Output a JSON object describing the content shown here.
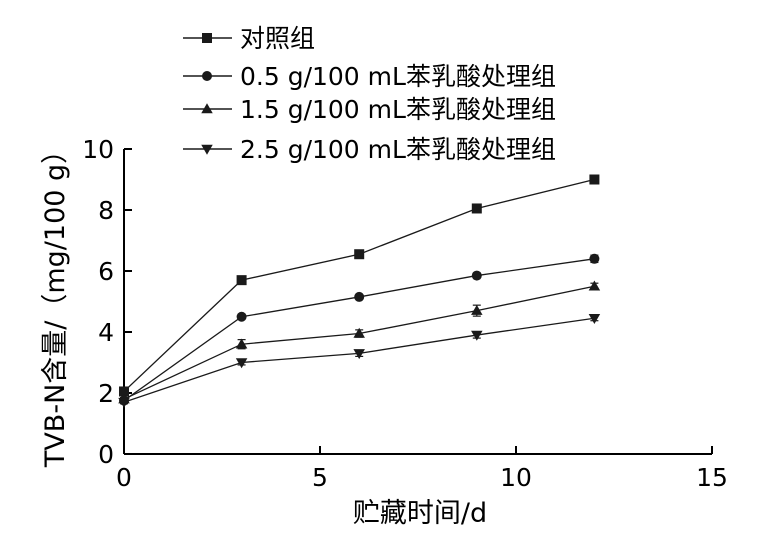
{
  "chart_data": {
    "type": "line",
    "xlabel": "贮藏时间/d",
    "ylabel": "TVB-N含量/（mg/100 g）",
    "xlim": [
      0,
      15
    ],
    "ylim": [
      0,
      10
    ],
    "xticks": [
      0,
      5,
      10,
      15
    ],
    "yticks": [
      0,
      2,
      4,
      6,
      8,
      10
    ],
    "grid": false,
    "legend_position": "top-left",
    "x": [
      0,
      3,
      6,
      9,
      12
    ],
    "series": [
      {
        "name": "对照组",
        "marker": "square",
        "values": [
          2.05,
          5.7,
          6.55,
          8.05,
          9.0
        ],
        "errors": [
          0.05,
          0.1,
          0.08,
          0.08,
          0.1
        ]
      },
      {
        "name": "0.5 g/100 mL苯乳酸处理组",
        "marker": "circle",
        "values": [
          1.75,
          4.5,
          5.15,
          5.85,
          6.4
        ],
        "errors": [
          0.05,
          0.08,
          0.06,
          0.08,
          0.12
        ]
      },
      {
        "name": "1.5 g/100 mL苯乳酸处理组",
        "marker": "triangle-up",
        "values": [
          1.8,
          3.6,
          3.95,
          4.7,
          5.5
        ],
        "errors": [
          0.05,
          0.15,
          0.12,
          0.18,
          0.1
        ]
      },
      {
        "name": "2.5 g/100 mL苯乳酸处理组",
        "marker": "triangle-down",
        "values": [
          1.7,
          3.0,
          3.3,
          3.9,
          4.45
        ],
        "errors": [
          0.05,
          0.08,
          0.1,
          0.1,
          0.08
        ]
      }
    ]
  }
}
